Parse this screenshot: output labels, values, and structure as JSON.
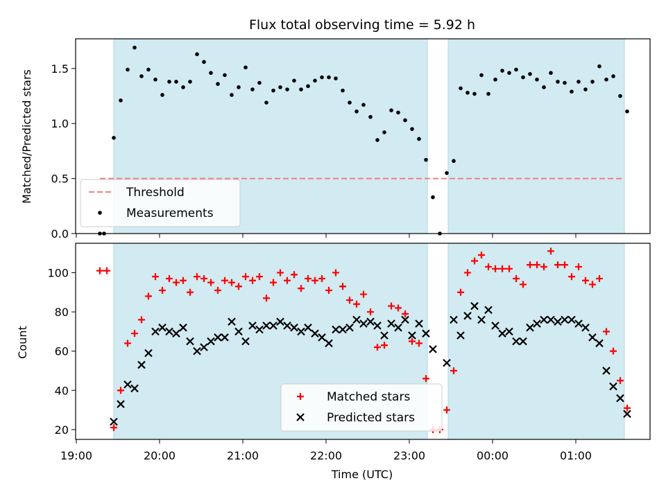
{
  "chart_data": [
    {
      "type": "scatter",
      "title": "Flux total observing time = 5.92 h",
      "ylabel": "Matched/Predicted stars",
      "xlabel": "",
      "xlim": [
        "19:00",
        "01:55"
      ],
      "ylim": [
        0,
        1.77
      ],
      "y_ticks": [
        "0.0",
        "0.5",
        "1.0",
        "1.5"
      ],
      "x_ticks": [
        "19:00",
        "20:00",
        "21:00",
        "22:00",
        "23:00",
        "00:00",
        "01:00"
      ],
      "shaded_spans": [
        [
          "19:27",
          "23:13"
        ],
        [
          "23:28",
          "01:35"
        ]
      ],
      "shade_color": "#add8e6",
      "threshold": {
        "name": "Threshold",
        "value": 0.5,
        "x": [
          "19:17",
          "01:35"
        ],
        "color": "#f08080"
      },
      "legend": {
        "placement": "lower-left",
        "entries": [
          "Threshold",
          "Measurements"
        ]
      },
      "series": [
        {
          "name": "Measurements",
          "marker": "dot",
          "color": "#000000",
          "points": [
            [
              "19:17",
              0.0
            ],
            [
              "19:20",
              0.0
            ],
            [
              "19:27",
              0.87
            ],
            [
              "19:32",
              1.21
            ],
            [
              "19:37",
              1.49
            ],
            [
              "19:42",
              1.69
            ],
            [
              "19:47",
              1.43
            ],
            [
              "19:52",
              1.49
            ],
            [
              "19:57",
              1.4
            ],
            [
              "20:02",
              1.26
            ],
            [
              "20:07",
              1.38
            ],
            [
              "20:12",
              1.38
            ],
            [
              "20:17",
              1.33
            ],
            [
              "20:22",
              1.38
            ],
            [
              "20:27",
              1.63
            ],
            [
              "20:32",
              1.56
            ],
            [
              "20:37",
              1.46
            ],
            [
              "20:42",
              1.36
            ],
            [
              "20:47",
              1.44
            ],
            [
              "20:52",
              1.26
            ],
            [
              "20:57",
              1.33
            ],
            [
              "21:02",
              1.51
            ],
            [
              "21:07",
              1.31
            ],
            [
              "21:12",
              1.37
            ],
            [
              "21:17",
              1.19
            ],
            [
              "21:22",
              1.3
            ],
            [
              "21:27",
              1.33
            ],
            [
              "21:32",
              1.31
            ],
            [
              "21:37",
              1.39
            ],
            [
              "21:42",
              1.31
            ],
            [
              "21:47",
              1.34
            ],
            [
              "21:52",
              1.39
            ],
            [
              "21:57",
              1.42
            ],
            [
              "22:02",
              1.42
            ],
            [
              "22:07",
              1.41
            ],
            [
              "22:12",
              1.3
            ],
            [
              "22:17",
              1.19
            ],
            [
              "22:22",
              1.11
            ],
            [
              "22:27",
              1.17
            ],
            [
              "22:32",
              1.06
            ],
            [
              "22:37",
              0.85
            ],
            [
              "22:42",
              0.92
            ],
            [
              "22:47",
              1.12
            ],
            [
              "22:52",
              1.1
            ],
            [
              "22:57",
              1.03
            ],
            [
              "23:02",
              0.95
            ],
            [
              "23:07",
              0.86
            ],
            [
              "23:12",
              0.67
            ],
            [
              "23:17",
              0.33
            ],
            [
              "23:22",
              0.0
            ],
            [
              "23:27",
              0.55
            ],
            [
              "23:32",
              0.66
            ],
            [
              "23:37",
              1.32
            ],
            [
              "23:42",
              1.28
            ],
            [
              "23:47",
              1.27
            ],
            [
              "23:52",
              1.44
            ],
            [
              "23:57",
              1.27
            ],
            [
              "00:02",
              1.4
            ],
            [
              "00:07",
              1.48
            ],
            [
              "00:12",
              1.46
            ],
            [
              "00:17",
              1.49
            ],
            [
              "00:22",
              1.42
            ],
            [
              "00:27",
              1.45
            ],
            [
              "00:32",
              1.4
            ],
            [
              "00:37",
              1.33
            ],
            [
              "00:42",
              1.46
            ],
            [
              "00:47",
              1.38
            ],
            [
              "00:52",
              1.37
            ],
            [
              "00:57",
              1.29
            ],
            [
              "01:02",
              1.38
            ],
            [
              "01:07",
              1.31
            ],
            [
              "01:12",
              1.38
            ],
            [
              "01:17",
              1.52
            ],
            [
              "01:22",
              1.4
            ],
            [
              "01:27",
              1.43
            ],
            [
              "01:32",
              1.25
            ],
            [
              "01:37",
              1.11
            ]
          ]
        }
      ]
    },
    {
      "type": "scatter",
      "title": "",
      "ylabel": "Count",
      "xlabel": "Time (UTC)",
      "xlim": [
        "19:00",
        "01:55"
      ],
      "ylim": [
        15,
        115
      ],
      "y_ticks": [
        "20",
        "40",
        "60",
        "80",
        "100"
      ],
      "x_ticks": [
        "19:00",
        "20:00",
        "21:00",
        "22:00",
        "23:00",
        "00:00",
        "01:00"
      ],
      "shaded_spans": [
        [
          "19:27",
          "23:13"
        ],
        [
          "23:28",
          "01:35"
        ]
      ],
      "shade_color": "#add8e6",
      "legend": {
        "placement": "lower-center",
        "entries": [
          "Matched stars",
          "Predicted stars"
        ]
      },
      "series": [
        {
          "name": "Matched stars",
          "marker": "plus",
          "color": "#ff0000",
          "points": [
            [
              "19:17",
              101
            ],
            [
              "19:22",
              101
            ],
            [
              "19:27",
              21
            ],
            [
              "19:32",
              40
            ],
            [
              "19:37",
              64
            ],
            [
              "19:42",
              69
            ],
            [
              "19:47",
              76
            ],
            [
              "19:52",
              88
            ],
            [
              "19:57",
              98
            ],
            [
              "20:02",
              91
            ],
            [
              "20:07",
              97
            ],
            [
              "20:12",
              95
            ],
            [
              "20:17",
              96
            ],
            [
              "20:22",
              90
            ],
            [
              "20:27",
              98
            ],
            [
              "20:32",
              97
            ],
            [
              "20:37",
              95
            ],
            [
              "20:42",
              91
            ],
            [
              "20:47",
              96
            ],
            [
              "20:52",
              95
            ],
            [
              "20:57",
              93
            ],
            [
              "21:02",
              98
            ],
            [
              "21:07",
              96
            ],
            [
              "21:12",
              98
            ],
            [
              "21:17",
              87
            ],
            [
              "21:22",
              95
            ],
            [
              "21:27",
              100
            ],
            [
              "21:32",
              96
            ],
            [
              "21:37",
              99
            ],
            [
              "21:42",
              92
            ],
            [
              "21:47",
              97
            ],
            [
              "21:52",
              96
            ],
            [
              "21:57",
              97
            ],
            [
              "22:02",
              91
            ],
            [
              "22:07",
              100
            ],
            [
              "22:12",
              93
            ],
            [
              "22:17",
              86
            ],
            [
              "22:22",
              84
            ],
            [
              "22:27",
              89
            ],
            [
              "22:32",
              80
            ],
            [
              "22:37",
              62
            ],
            [
              "22:42",
              63
            ],
            [
              "22:47",
              83
            ],
            [
              "22:52",
              82
            ],
            [
              "22:57",
              79
            ],
            [
              "23:02",
              65
            ],
            [
              "23:07",
              64
            ],
            [
              "23:12",
              46
            ],
            [
              "23:17",
              20
            ],
            [
              "23:22",
              20
            ],
            [
              "23:27",
              30
            ],
            [
              "23:32",
              50
            ],
            [
              "23:37",
              90
            ],
            [
              "23:42",
              100
            ],
            [
              "23:47",
              106
            ],
            [
              "23:52",
              109
            ],
            [
              "23:57",
              103
            ],
            [
              "00:02",
              102
            ],
            [
              "00:07",
              102
            ],
            [
              "00:12",
              102
            ],
            [
              "00:17",
              97
            ],
            [
              "00:22",
              94
            ],
            [
              "00:27",
              104
            ],
            [
              "00:32",
              104
            ],
            [
              "00:37",
              103
            ],
            [
              "00:42",
              111
            ],
            [
              "00:47",
              104
            ],
            [
              "00:52",
              104
            ],
            [
              "00:57",
              98
            ],
            [
              "01:02",
              103
            ],
            [
              "01:07",
              96
            ],
            [
              "01:12",
              94
            ],
            [
              "01:17",
              97
            ],
            [
              "01:22",
              70
            ],
            [
              "01:27",
              60
            ],
            [
              "01:32",
              45
            ],
            [
              "01:37",
              31
            ]
          ]
        },
        {
          "name": "Predicted stars",
          "marker": "x",
          "color": "#000000",
          "points": [
            [
              "19:27",
              24
            ],
            [
              "19:32",
              33
            ],
            [
              "19:37",
              43
            ],
            [
              "19:42",
              41
            ],
            [
              "19:47",
              53
            ],
            [
              "19:52",
              59
            ],
            [
              "19:57",
              70
            ],
            [
              "20:02",
              72
            ],
            [
              "20:07",
              70
            ],
            [
              "20:12",
              69
            ],
            [
              "20:17",
              72
            ],
            [
              "20:22",
              65
            ],
            [
              "20:27",
              60
            ],
            [
              "20:32",
              62
            ],
            [
              "20:37",
              65
            ],
            [
              "20:42",
              67
            ],
            [
              "20:47",
              67
            ],
            [
              "20:52",
              75
            ],
            [
              "20:57",
              70
            ],
            [
              "21:02",
              65
            ],
            [
              "21:07",
              73
            ],
            [
              "21:12",
              71
            ],
            [
              "21:17",
              73
            ],
            [
              "21:22",
              73
            ],
            [
              "21:27",
              75
            ],
            [
              "21:32",
              73
            ],
            [
              "21:37",
              72
            ],
            [
              "21:42",
              70
            ],
            [
              "21:47",
              72
            ],
            [
              "21:52",
              69
            ],
            [
              "21:57",
              67
            ],
            [
              "22:02",
              64
            ],
            [
              "22:07",
              71
            ],
            [
              "22:12",
              71
            ],
            [
              "22:17",
              72
            ],
            [
              "22:22",
              76
            ],
            [
              "22:27",
              74
            ],
            [
              "22:32",
              75
            ],
            [
              "22:37",
              73
            ],
            [
              "22:42",
              68
            ],
            [
              "22:47",
              74
            ],
            [
              "22:52",
              72
            ],
            [
              "22:57",
              76
            ],
            [
              "23:02",
              68
            ],
            [
              "23:07",
              74
            ],
            [
              "23:12",
              69
            ],
            [
              "23:17",
              61
            ],
            [
              "23:27",
              54
            ],
            [
              "23:32",
              76
            ],
            [
              "23:37",
              68
            ],
            [
              "23:42",
              78
            ],
            [
              "23:47",
              83
            ],
            [
              "23:52",
              76
            ],
            [
              "23:57",
              81
            ],
            [
              "00:02",
              73
            ],
            [
              "00:07",
              69
            ],
            [
              "00:12",
              70
            ],
            [
              "00:17",
              65
            ],
            [
              "00:22",
              65
            ],
            [
              "00:27",
              72
            ],
            [
              "00:32",
              74
            ],
            [
              "00:37",
              76
            ],
            [
              "00:42",
              76
            ],
            [
              "00:47",
              75
            ],
            [
              "00:52",
              76
            ],
            [
              "00:57",
              76
            ],
            [
              "01:02",
              74
            ],
            [
              "01:07",
              72
            ],
            [
              "01:12",
              67
            ],
            [
              "01:17",
              64
            ],
            [
              "01:22",
              50
            ],
            [
              "01:27",
              42
            ],
            [
              "01:32",
              36
            ],
            [
              "01:37",
              28
            ]
          ]
        }
      ]
    }
  ]
}
